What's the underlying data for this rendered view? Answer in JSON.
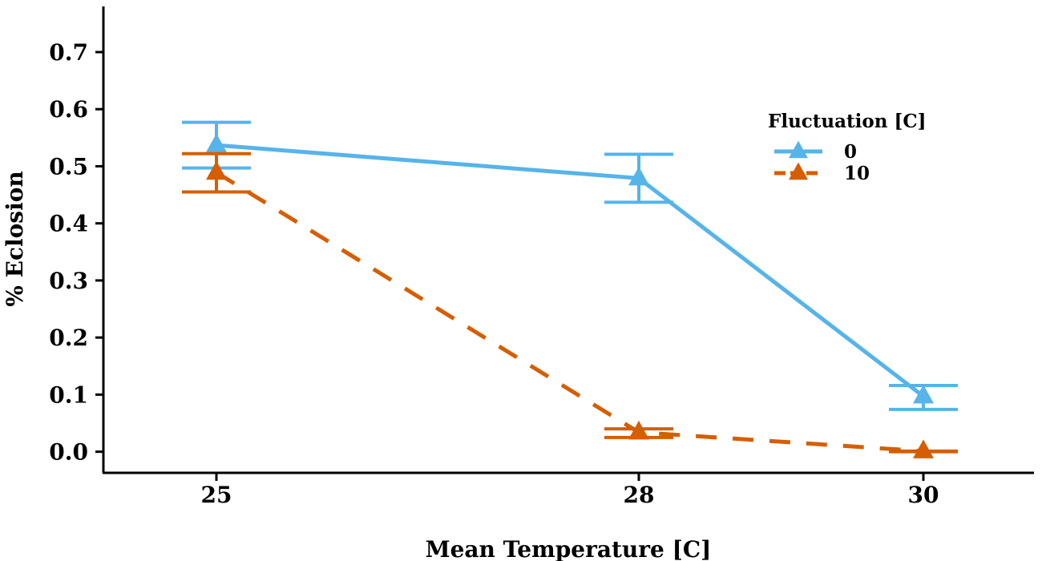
{
  "chart_data": {
    "type": "line",
    "title": "",
    "xlabel": "Mean Temperature [C]",
    "ylabel": "% Eclosion",
    "categories": [
      "25",
      "28",
      "30"
    ],
    "ylim": [
      -0.037,
      0.78
    ],
    "yticks": [
      0.0,
      0.1,
      0.2,
      0.3,
      0.4,
      0.5,
      0.6,
      0.7
    ],
    "ytick_labels": [
      "0.0",
      "0.1",
      "0.2",
      "0.3",
      "0.4",
      "0.5",
      "0.6",
      "0.7"
    ],
    "grid": false,
    "legend": {
      "title": "Fluctuation [C]",
      "position": "right"
    },
    "series": [
      {
        "name": "0",
        "color": "#56B4E9",
        "line_style": "solid",
        "marker": "triangle",
        "values": [
          0.537,
          0.479,
          0.097
        ],
        "error_low": [
          0.497,
          0.437,
          0.074
        ],
        "error_high": [
          0.577,
          0.521,
          0.116
        ]
      },
      {
        "name": "10",
        "color": "#D55E00",
        "line_style": "dashed",
        "marker": "triangle",
        "values": [
          0.489,
          0.034,
          0.001
        ],
        "error_low": [
          0.455,
          0.025,
          0.0
        ],
        "error_high": [
          0.522,
          0.04,
          0.001
        ]
      }
    ]
  }
}
